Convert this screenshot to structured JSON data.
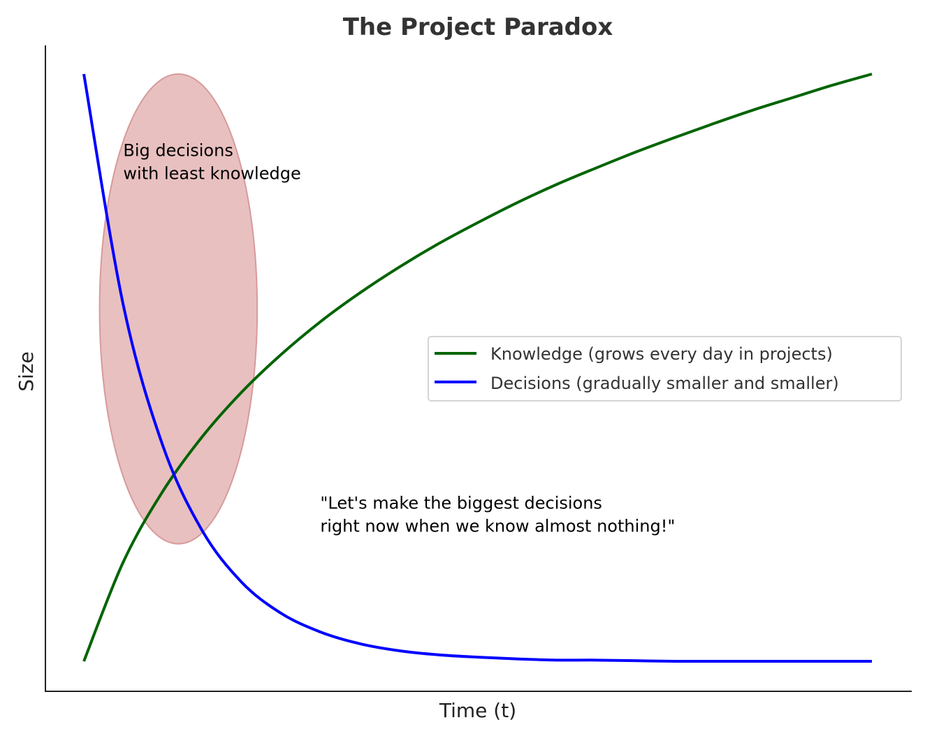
{
  "chart_data": {
    "type": "line",
    "title": "The Project Paradox",
    "xlabel": "Time (t)",
    "ylabel": "Size",
    "xlim": [
      -0.5,
      10.5
    ],
    "ylim": [
      -0.05,
      1.05
    ],
    "grid": false,
    "ticks": false,
    "legend_placement": "center-right",
    "x": [
      0,
      0.5,
      1,
      1.5,
      2,
      2.5,
      3,
      3.5,
      4,
      4.5,
      5,
      5.5,
      6,
      6.5,
      7,
      7.5,
      8,
      8.5,
      9,
      9.5,
      10
    ],
    "series": [
      {
        "name": "Knowledge (grows every day in projects)",
        "color": "#006400",
        "values": [
          0,
          0.169,
          0.289,
          0.382,
          0.458,
          0.522,
          0.578,
          0.627,
          0.671,
          0.711,
          0.747,
          0.781,
          0.812,
          0.84,
          0.867,
          0.892,
          0.916,
          0.939,
          0.96,
          0.981,
          1.0
        ]
      },
      {
        "name": "Decisions (gradually smaller and smaller)",
        "color": "#0000ff",
        "values": [
          1,
          0.607,
          0.368,
          0.223,
          0.135,
          0.082,
          0.05,
          0.03,
          0.018,
          0.011,
          0.007,
          0.004,
          0.002,
          0.002,
          0.001,
          0,
          0,
          0,
          0,
          0,
          0
        ]
      }
    ],
    "highlight_ellipse": {
      "center": [
        1.2,
        0.6
      ],
      "width": 2.0,
      "height": 0.8,
      "color": "#e8c0c0",
      "edge_color": "#d89a9a"
    },
    "annotations": [
      {
        "lines": [
          "Big decisions",
          "with least knowledge"
        ],
        "x": 0.5,
        "y": 0.86
      },
      {
        "lines": [
          "\"Let's make the biggest decisions",
          "right now when we know almost nothing!\""
        ],
        "x": 3.0,
        "y": 0.26
      }
    ]
  }
}
